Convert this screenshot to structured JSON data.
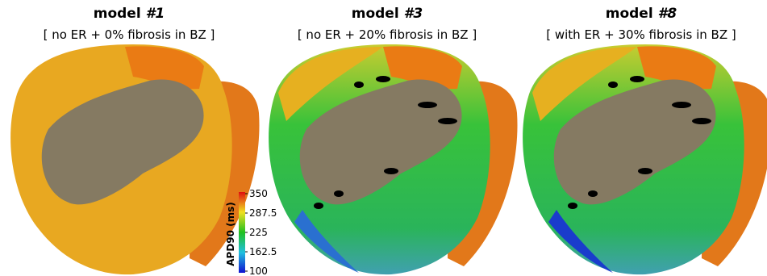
{
  "panels": [
    {
      "title": "model",
      "number": "#1",
      "subtitle": "[ no ER + 0% fibrosis in BZ ]"
    },
    {
      "title": "model",
      "number": "#3",
      "subtitle": "[ no ER + 20% fibrosis in BZ ]"
    },
    {
      "title": "model",
      "number": "#8",
      "subtitle": "[ with ER + 30% fibrosis in BZ ]"
    }
  ],
  "colorbar": {
    "label": "APD90 (ms)",
    "ticks": [
      "350",
      "287.5",
      "225",
      "162.5",
      "100"
    ]
  }
}
